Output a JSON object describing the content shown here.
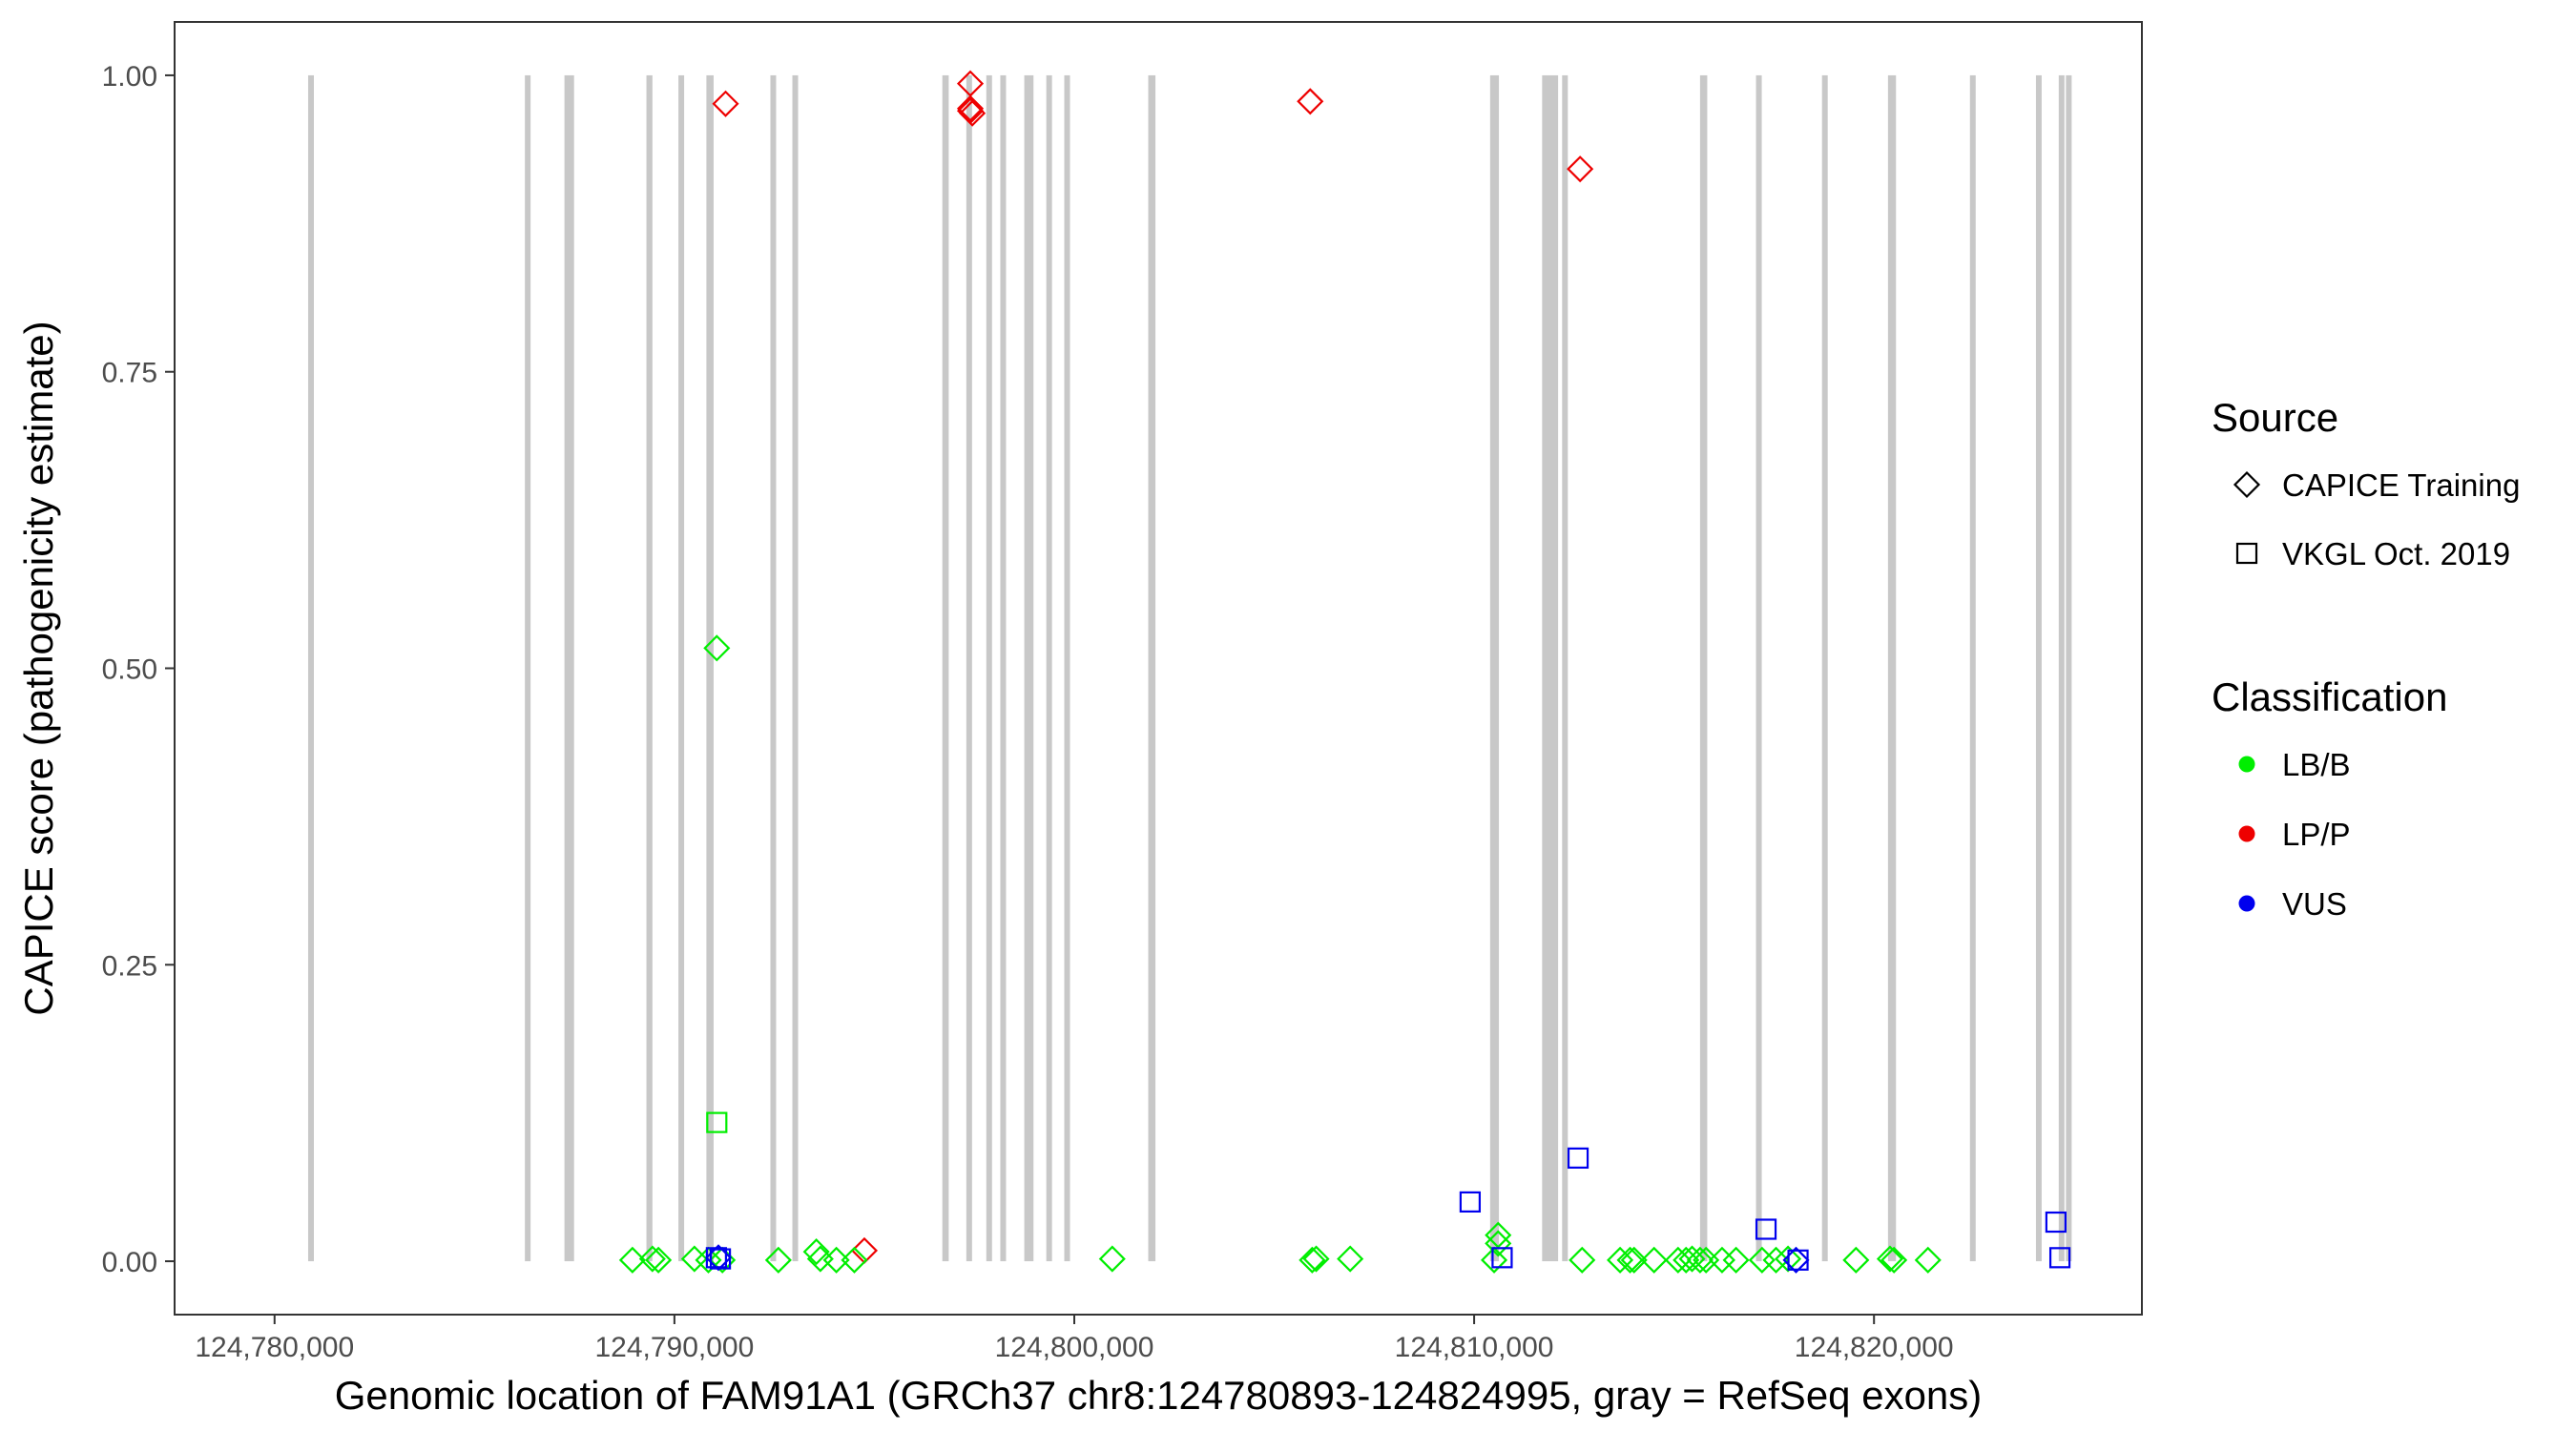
{
  "chart_data": {
    "type": "scatter",
    "title": "",
    "xlabel": "Genomic location of FAM91A1 (GRCh37 chr8:124780893-124824995, gray = RefSeq exons)",
    "ylabel": "CAPICE score (pathogenicity estimate)",
    "xlim": [
      124777500,
      124826700
    ],
    "ylim": [
      -0.045,
      1.045
    ],
    "x_ticks": [
      124780000,
      124790000,
      124800000,
      124810000,
      124820000
    ],
    "x_tick_labels": [
      "124,780,000",
      "124,790,000",
      "124,800,000",
      "124,810,000",
      "124,820,000"
    ],
    "y_ticks": [
      0,
      0.25,
      0.5,
      0.75,
      1.0
    ],
    "y_tick_labels": [
      "0.00",
      "0.25",
      "0.50",
      "0.75",
      "1.00"
    ],
    "grid": false,
    "legend_position": "right",
    "colors": {
      "LB/B": "#00ee00",
      "LP/P": "#ee0000",
      "VUS": "#0000ee",
      "exon": "#c8c8c8"
    },
    "exons": [
      [
        124780840,
        124780960
      ],
      [
        124786260,
        124786380
      ],
      [
        124787250,
        124787490
      ],
      [
        124789300,
        124789450
      ],
      [
        124790100,
        124790220
      ],
      [
        124790800,
        124790980
      ],
      [
        124792400,
        124792500
      ],
      [
        124792950,
        124793060
      ],
      [
        124796700,
        124796860
      ],
      [
        124797300,
        124797420
      ],
      [
        124797800,
        124797920
      ],
      [
        124798150,
        124798260
      ],
      [
        124798750,
        124798980
      ],
      [
        124799300,
        124799420
      ],
      [
        124799750,
        124799880
      ],
      [
        124801850,
        124802030
      ],
      [
        124810400,
        124810620
      ],
      [
        124811700,
        124812100
      ],
      [
        124812200,
        124812260
      ],
      [
        124824620,
        124824700
      ],
      [
        124815650,
        124815830
      ],
      [
        124817050,
        124817170
      ],
      [
        124818700,
        124818820
      ],
      [
        124820350,
        124820550
      ],
      [
        124822400,
        124822520
      ],
      [
        124824050,
        124824170
      ],
      [
        124824800,
        124824920
      ]
    ],
    "legends": [
      {
        "title": "Source",
        "entries": [
          {
            "label": "CAPICE Training",
            "shape": "diamond"
          },
          {
            "label": "VKGL Oct. 2019",
            "shape": "square"
          }
        ]
      },
      {
        "title": "Classification",
        "entries": [
          {
            "label": "LB/B",
            "shape": "dot",
            "class": "LB/B"
          },
          {
            "label": "LP/P",
            "shape": "dot",
            "class": "LP/P"
          },
          {
            "label": "VUS",
            "shape": "dot",
            "class": "VUS"
          }
        ]
      }
    ],
    "series": [
      {
        "source": "CAPICE Training",
        "classification": "LP/P",
        "points": [
          [
            124791280,
            0.976
          ],
          [
            124797400,
            0.993
          ],
          [
            124797400,
            0.972
          ],
          [
            124797400,
            0.97
          ],
          [
            124797450,
            0.968
          ],
          [
            124805900,
            0.978
          ],
          [
            124812650,
            0.921
          ],
          [
            124794750,
            0.009
          ]
        ]
      },
      {
        "source": "CAPICE Training",
        "classification": "LB/B",
        "points": [
          [
            124791060,
            0.517
          ],
          [
            124788950,
            0.001
          ],
          [
            124789450,
            0.002
          ],
          [
            124789600,
            0.001
          ],
          [
            124790500,
            0.002
          ],
          [
            124790850,
            0.001
          ],
          [
            124791200,
            0.001
          ],
          [
            124792600,
            0.001
          ],
          [
            124793550,
            0.008
          ],
          [
            124793650,
            0.002
          ],
          [
            124794050,
            0.001
          ],
          [
            124794500,
            0.001
          ],
          [
            124800950,
            0.002
          ],
          [
            124805950,
            0.001
          ],
          [
            124806050,
            0.002
          ],
          [
            124806900,
            0.002
          ],
          [
            124810600,
            0.022
          ],
          [
            124810600,
            0.015
          ],
          [
            124810500,
            0.001
          ],
          [
            124812700,
            0.001
          ],
          [
            124813650,
            0.001
          ],
          [
            124813900,
            0.001
          ],
          [
            124814000,
            0.001
          ],
          [
            124814500,
            0.001
          ],
          [
            124815100,
            0.001
          ],
          [
            124815300,
            0.001
          ],
          [
            124815450,
            0.002
          ],
          [
            124815650,
            0.001
          ],
          [
            124815800,
            0.001
          ],
          [
            124816200,
            0.001
          ],
          [
            124816550,
            0.001
          ],
          [
            124817200,
            0.001
          ],
          [
            124817550,
            0.001
          ],
          [
            124817850,
            0.002
          ],
          [
            124819550,
            0.001
          ],
          [
            124820400,
            0.002
          ],
          [
            124820500,
            0.001
          ],
          [
            124821350,
            0.001
          ]
        ]
      },
      {
        "source": "CAPICE Training",
        "classification": "VUS",
        "points": [
          [
            124791100,
            0.003
          ],
          [
            124818050,
            0.001
          ]
        ]
      },
      {
        "source": "VKGL Oct. 2019",
        "classification": "LB/B",
        "points": [
          [
            124791060,
            0.117
          ]
        ]
      },
      {
        "source": "VKGL Oct. 2019",
        "classification": "VUS",
        "points": [
          [
            124791050,
            0.003
          ],
          [
            124791150,
            0.002
          ],
          [
            124809900,
            0.05
          ],
          [
            124810700,
            0.003
          ],
          [
            124812600,
            0.087
          ],
          [
            124817300,
            0.027
          ],
          [
            124818100,
            0.001
          ],
          [
            124824550,
            0.033
          ],
          [
            124824650,
            0.003
          ]
        ]
      }
    ]
  }
}
